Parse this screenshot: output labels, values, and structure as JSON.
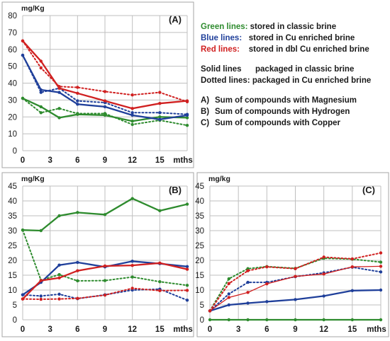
{
  "legend": {
    "green_label": "Green lines:",
    "green_text": " stored in classic brine",
    "blue_label": "Blue lines:",
    "blue_text": "   stored in Cu enriched brine",
    "red_label": "Red lines:",
    "red_text": "    stored in dbl Cu enriched brine",
    "solid_label": "Solid lines",
    "solid_text": "packaged in classic brine",
    "dotted_label": "Dotted lines:",
    "dotted_text": " packaged in Cu enriched brine",
    "a_key": "A)",
    "a_text": "Sum of compounds with Magnesium",
    "b_key": "B)",
    "b_text": "Sum of compounds with Hydrogen",
    "c_key": "C)",
    "c_text": "Sum of compounds with Copper"
  },
  "colors": {
    "green": "#2e8b2e",
    "blue": "#1f3f9a",
    "red": "#d02020",
    "grid": "#bfbfbf",
    "frame": "#a6a6a6"
  },
  "chart_data": [
    {
      "type": "line",
      "panel_label": "(A)",
      "ylabel": "mg/Kg",
      "xlabel_unit": "mths",
      "ylim": [
        0,
        80
      ],
      "yticks": [
        0,
        10,
        20,
        30,
        40,
        50,
        60,
        70,
        80
      ],
      "xticks": [
        0,
        3,
        6,
        9,
        12,
        15
      ],
      "xlim": [
        0,
        18
      ],
      "grid": true,
      "series": [
        {
          "color": "green",
          "style": "solid",
          "x": [
            0,
            2,
            4,
            6,
            9,
            12,
            15,
            18
          ],
          "y": [
            31,
            26,
            19.5,
            21.5,
            21,
            17.5,
            20,
            19.5
          ]
        },
        {
          "color": "green",
          "style": "dotted",
          "x": [
            0,
            2,
            4,
            6,
            9,
            12,
            15,
            18
          ],
          "y": [
            31,
            22.5,
            25,
            22,
            22,
            15.5,
            18,
            15
          ]
        },
        {
          "color": "blue",
          "style": "solid",
          "x": [
            0,
            2,
            4,
            6,
            9,
            12,
            15,
            18
          ],
          "y": [
            56.5,
            36,
            34.5,
            27.5,
            26,
            21,
            18.5,
            21
          ]
        },
        {
          "color": "blue",
          "style": "dotted",
          "x": [
            0,
            2,
            4,
            6,
            9,
            12,
            15,
            18
          ],
          "y": [
            56.5,
            34.5,
            37,
            29.5,
            28.5,
            22.5,
            22.5,
            21.5
          ]
        },
        {
          "color": "red",
          "style": "solid",
          "x": [
            0,
            2,
            4,
            6,
            9,
            12,
            15,
            18
          ],
          "y": [
            65,
            53,
            37,
            34,
            29.5,
            25,
            28,
            29.5
          ]
        },
        {
          "color": "red",
          "style": "dotted",
          "x": [
            0,
            2,
            4,
            6,
            9,
            12,
            15,
            18
          ],
          "y": [
            65,
            49,
            38,
            37.5,
            35,
            33,
            34.5,
            29
          ]
        }
      ]
    },
    {
      "type": "line",
      "panel_label": "(B)",
      "ylabel": "mg/Kg",
      "xlabel_unit": "mths",
      "ylim": [
        0,
        45
      ],
      "yticks": [
        0,
        5,
        10,
        15,
        20,
        25,
        30,
        35,
        40,
        45
      ],
      "xticks": [
        0,
        3,
        6,
        9,
        12,
        15
      ],
      "xlim": [
        0,
        18
      ],
      "grid": true,
      "series": [
        {
          "color": "green",
          "style": "solid",
          "x": [
            0,
            2,
            4,
            6,
            9,
            12,
            15,
            18
          ],
          "y": [
            30.2,
            30,
            35,
            36.1,
            35.4,
            40.8,
            36.7,
            38.9
          ]
        },
        {
          "color": "green",
          "style": "dotted",
          "x": [
            0,
            2,
            4,
            6,
            9,
            12,
            15,
            18
          ],
          "y": [
            30.2,
            13.3,
            15.2,
            13.1,
            13.2,
            14.4,
            12.8,
            11.6
          ]
        },
        {
          "color": "blue",
          "style": "solid",
          "x": [
            0,
            2,
            4,
            6,
            9,
            12,
            15,
            18
          ],
          "y": [
            8.4,
            12.6,
            18.4,
            19.3,
            17.8,
            19.7,
            18.9,
            17.9
          ]
        },
        {
          "color": "blue",
          "style": "dotted",
          "x": [
            0,
            2,
            4,
            6,
            9,
            12,
            15,
            18
          ],
          "y": [
            8.4,
            8,
            8.6,
            7.1,
            8.4,
            10,
            10.3,
            6.6
          ]
        },
        {
          "color": "red",
          "style": "solid",
          "x": [
            0,
            2,
            4,
            6,
            9,
            12,
            15,
            18
          ],
          "y": [
            7,
            13.2,
            14.1,
            16.5,
            18.1,
            18.3,
            19.1,
            17
          ]
        },
        {
          "color": "red",
          "style": "dotted",
          "x": [
            0,
            2,
            4,
            6,
            9,
            12,
            15,
            18
          ],
          "y": [
            7,
            6.9,
            7,
            7.2,
            8.3,
            10.6,
            9.8,
            9.9
          ]
        }
      ]
    },
    {
      "type": "line",
      "panel_label": "(C)",
      "ylabel": "mg/kg",
      "xlabel_unit": "mths",
      "ylim": [
        0,
        45
      ],
      "yticks": [
        0,
        5,
        10,
        15,
        20,
        25,
        30,
        35,
        40,
        45
      ],
      "xticks": [
        0,
        3,
        6,
        9,
        12,
        15
      ],
      "xlim": [
        0,
        18
      ],
      "grid": true,
      "series": [
        {
          "color": "green",
          "style": "solid",
          "x": [
            0,
            2,
            4,
            6,
            9,
            12,
            15,
            18
          ],
          "y": [
            0,
            0,
            0,
            0,
            0,
            0,
            0,
            0
          ]
        },
        {
          "color": "green",
          "style": "dotted",
          "x": [
            0,
            2,
            4,
            6,
            9,
            12,
            15,
            18
          ],
          "y": [
            3,
            13.8,
            17.2,
            17.9,
            17.3,
            20.7,
            20.4,
            19.4
          ]
        },
        {
          "color": "blue",
          "style": "solid",
          "x": [
            0,
            2,
            4,
            6,
            9,
            12,
            15,
            18
          ],
          "y": [
            3,
            5,
            5.6,
            6.1,
            6.8,
            8,
            9.8,
            10
          ]
        },
        {
          "color": "blue",
          "style": "dotted",
          "x": [
            0,
            2,
            4,
            6,
            9,
            12,
            15,
            18
          ],
          "y": [
            3,
            8.7,
            12.6,
            12.6,
            14.5,
            15.8,
            17.7,
            16.1
          ]
        },
        {
          "color": "red",
          "style": "solid",
          "x": [
            0,
            2,
            4,
            6,
            9,
            12,
            15,
            18
          ],
          "y": [
            3,
            7.5,
            9.2,
            12.1,
            14.6,
            15.4,
            17.8,
            18
          ]
        },
        {
          "color": "red",
          "style": "dotted",
          "x": [
            0,
            2,
            4,
            6,
            9,
            12,
            15,
            18
          ],
          "y": [
            3,
            12.2,
            16.5,
            17.8,
            17.2,
            21.1,
            20.5,
            22.5
          ]
        }
      ]
    }
  ]
}
